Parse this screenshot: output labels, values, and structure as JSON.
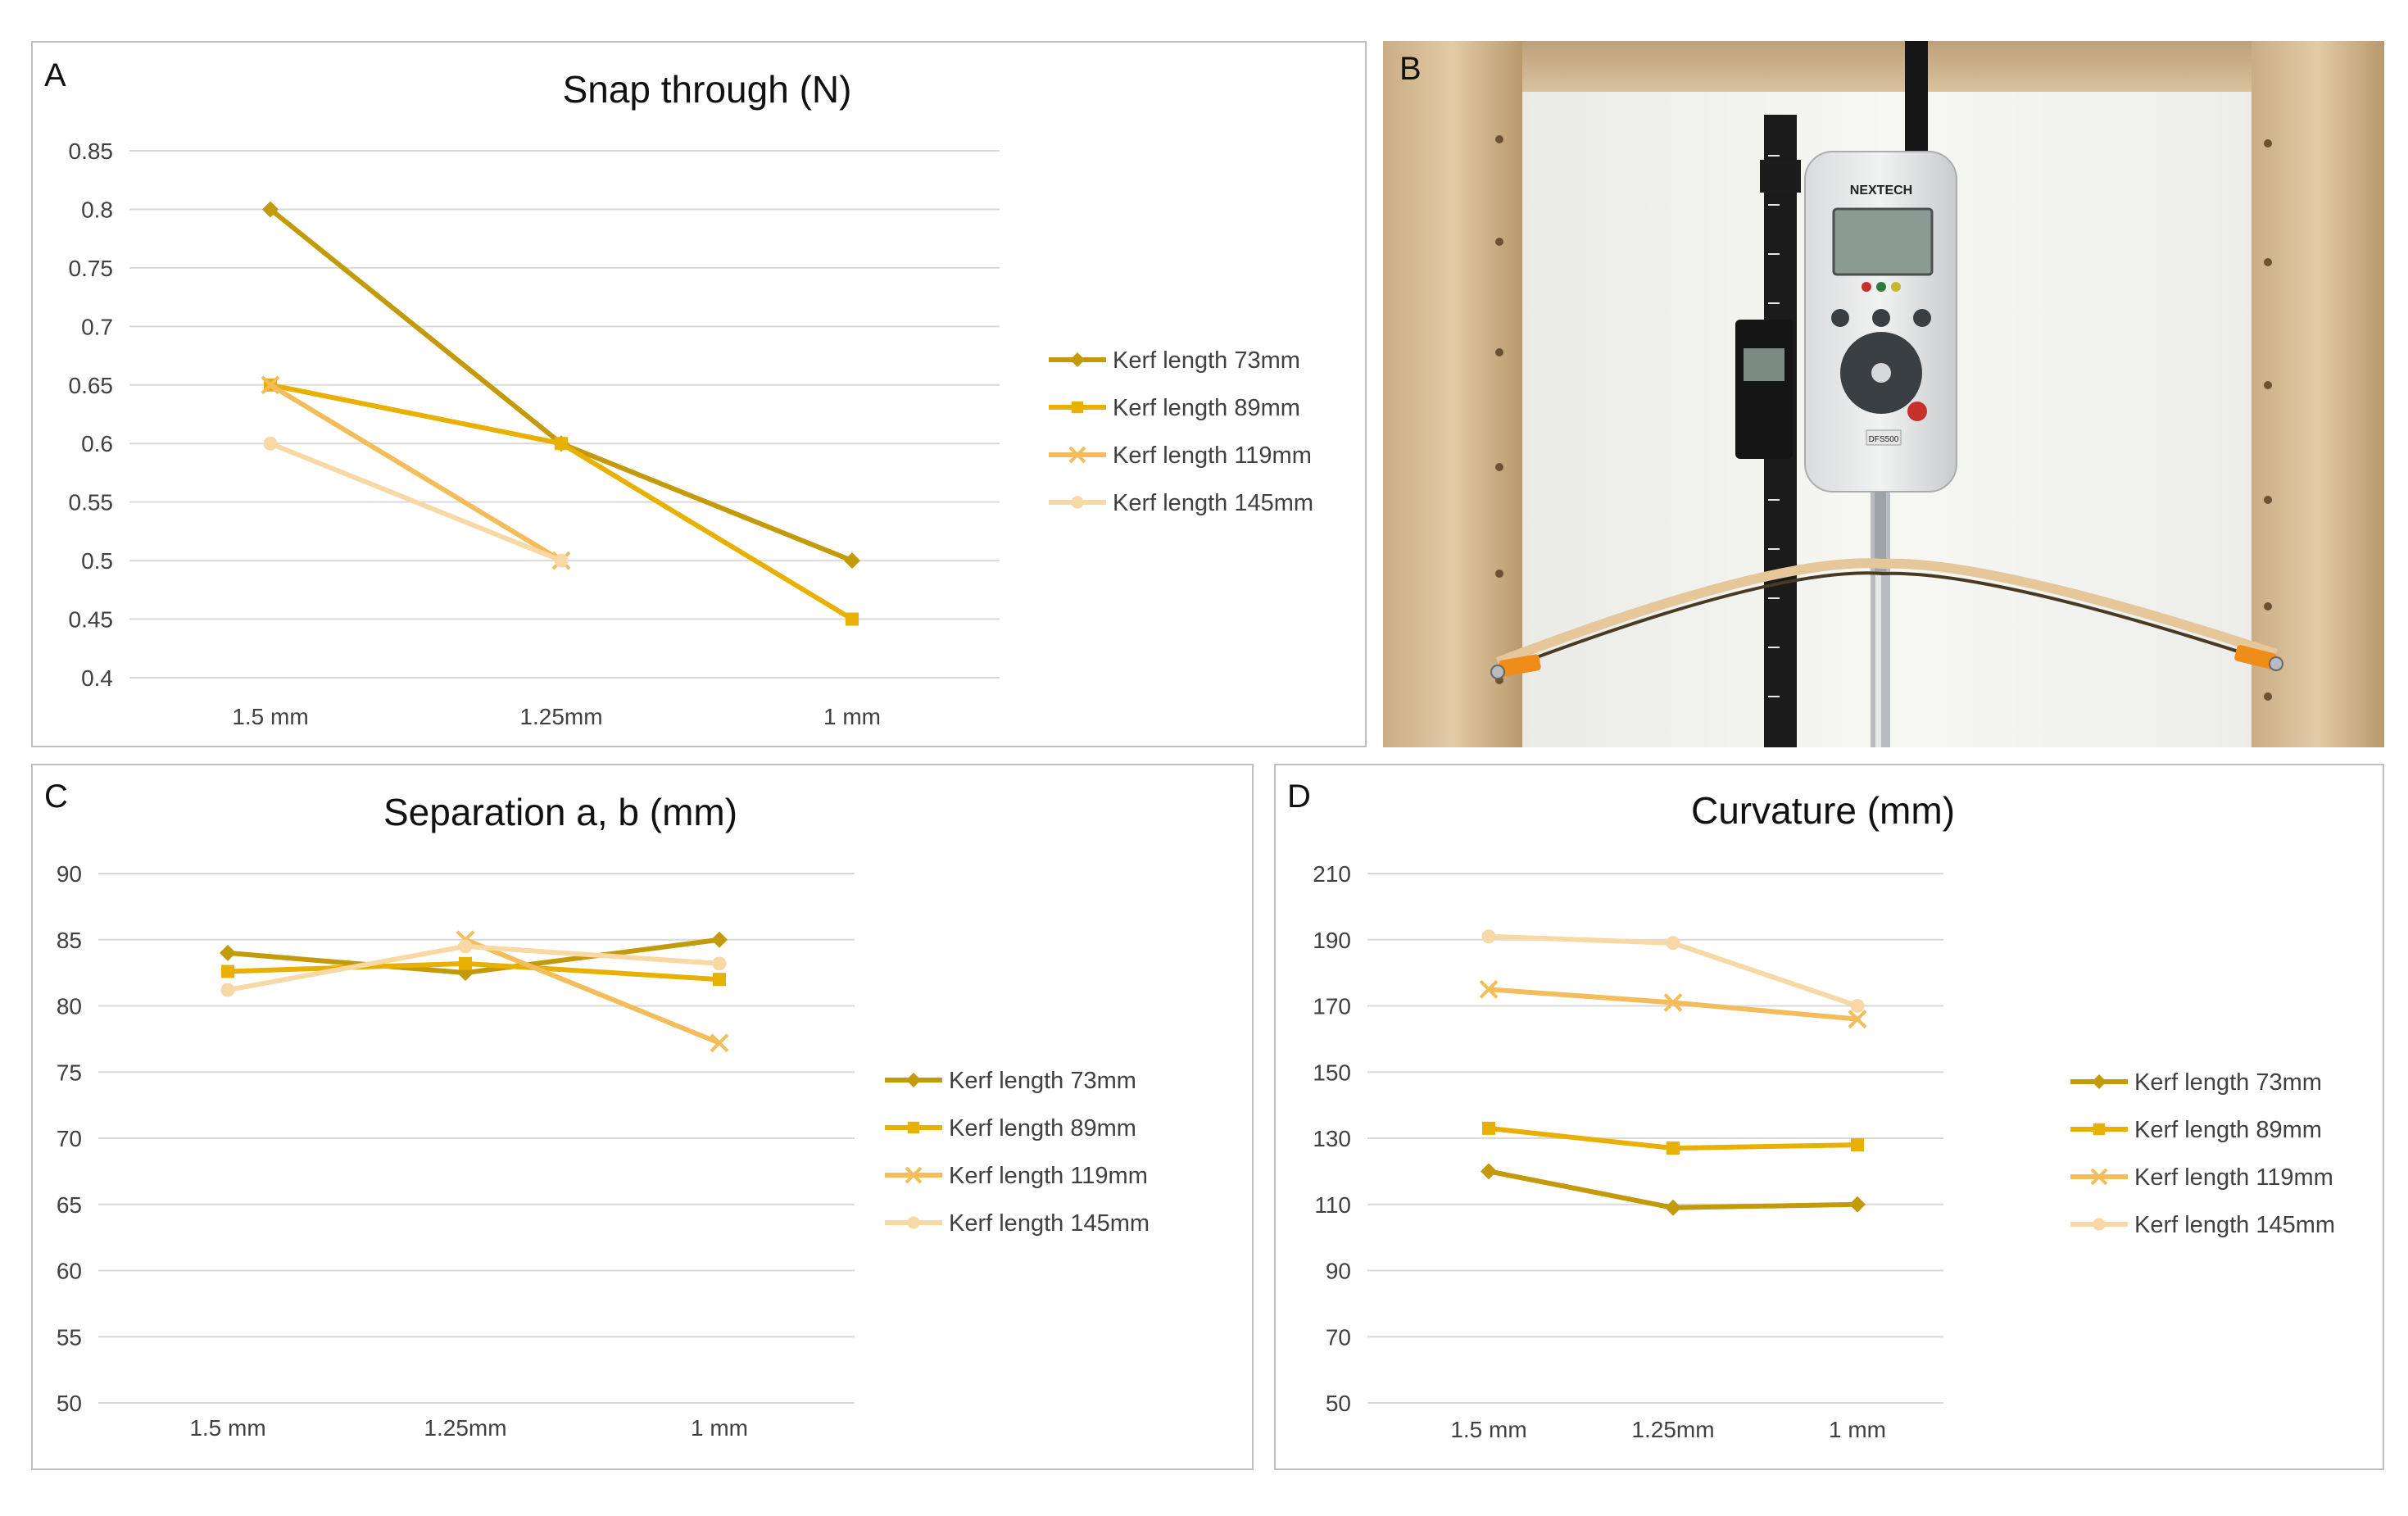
{
  "panels": {
    "a": {
      "letter": "A"
    },
    "b": {
      "letter": "B"
    },
    "c": {
      "letter": "C"
    },
    "d": {
      "letter": "D"
    }
  },
  "device": {
    "brand": "NEXTECH",
    "model": "DFS500"
  },
  "series_style": [
    {
      "color": "#c39a09",
      "marker": "diamond"
    },
    {
      "color": "#e8b000",
      "marker": "square"
    },
    {
      "color": "#f2bd5a",
      "marker": "cross"
    },
    {
      "color": "#f8d9a6",
      "marker": "circle"
    }
  ],
  "chart_data": [
    {
      "id": "a",
      "type": "line",
      "title": "Snap through (N)",
      "xlabel": "",
      "ylabel": "",
      "categories": [
        "1.5 mm",
        "1.25mm",
        "1 mm"
      ],
      "ylim": [
        0.4,
        0.85
      ],
      "yticks": [
        "0.4",
        "0.45",
        "0.5",
        "0.55",
        "0.6",
        "0.65",
        "0.7",
        "0.75",
        "0.8",
        "0.85"
      ],
      "grid": true,
      "legend_position": "right",
      "series": [
        {
          "name": "Kerf length 73mm",
          "values": [
            0.8,
            0.6,
            0.5
          ]
        },
        {
          "name": "Kerf length 89mm",
          "values": [
            0.65,
            0.6,
            0.45
          ]
        },
        {
          "name": "Kerf length 119mm",
          "values": [
            0.65,
            0.5,
            null
          ]
        },
        {
          "name": "Kerf length 145mm",
          "values": [
            0.6,
            0.5,
            null
          ]
        }
      ]
    },
    {
      "id": "c",
      "type": "line",
      "title": "Separation a, b (mm)",
      "xlabel": "",
      "ylabel": "",
      "categories": [
        "1.5 mm",
        "1.25mm",
        "1 mm"
      ],
      "ylim": [
        50,
        90
      ],
      "yticks": [
        "50",
        "55",
        "60",
        "65",
        "70",
        "75",
        "80",
        "85",
        "90"
      ],
      "grid": true,
      "legend_position": "right",
      "series": [
        {
          "name": "Kerf length 73mm",
          "values": [
            84.0,
            82.5,
            85.0
          ]
        },
        {
          "name": "Kerf length 89mm",
          "values": [
            82.6,
            83.2,
            82.0
          ]
        },
        {
          "name": "Kerf length 119mm",
          "values": [
            null,
            85.0,
            77.2
          ]
        },
        {
          "name": "Kerf length 145mm",
          "values": [
            81.2,
            84.5,
            83.2
          ]
        }
      ]
    },
    {
      "id": "d",
      "type": "line",
      "title": "Curvature (mm)",
      "xlabel": "",
      "ylabel": "",
      "categories": [
        "1.5 mm",
        "1.25mm",
        "1 mm"
      ],
      "ylim": [
        50,
        210
      ],
      "yticks": [
        "50",
        "70",
        "90",
        "110",
        "130",
        "150",
        "170",
        "190",
        "210"
      ],
      "grid": true,
      "legend_position": "right",
      "series": [
        {
          "name": "Kerf length 73mm",
          "values": [
            120,
            109,
            110
          ]
        },
        {
          "name": "Kerf length 89mm",
          "values": [
            133,
            127,
            128
          ]
        },
        {
          "name": "Kerf length 119mm",
          "values": [
            175,
            171,
            166
          ]
        },
        {
          "name": "Kerf length 145mm",
          "values": [
            191,
            189,
            170
          ]
        }
      ]
    }
  ]
}
